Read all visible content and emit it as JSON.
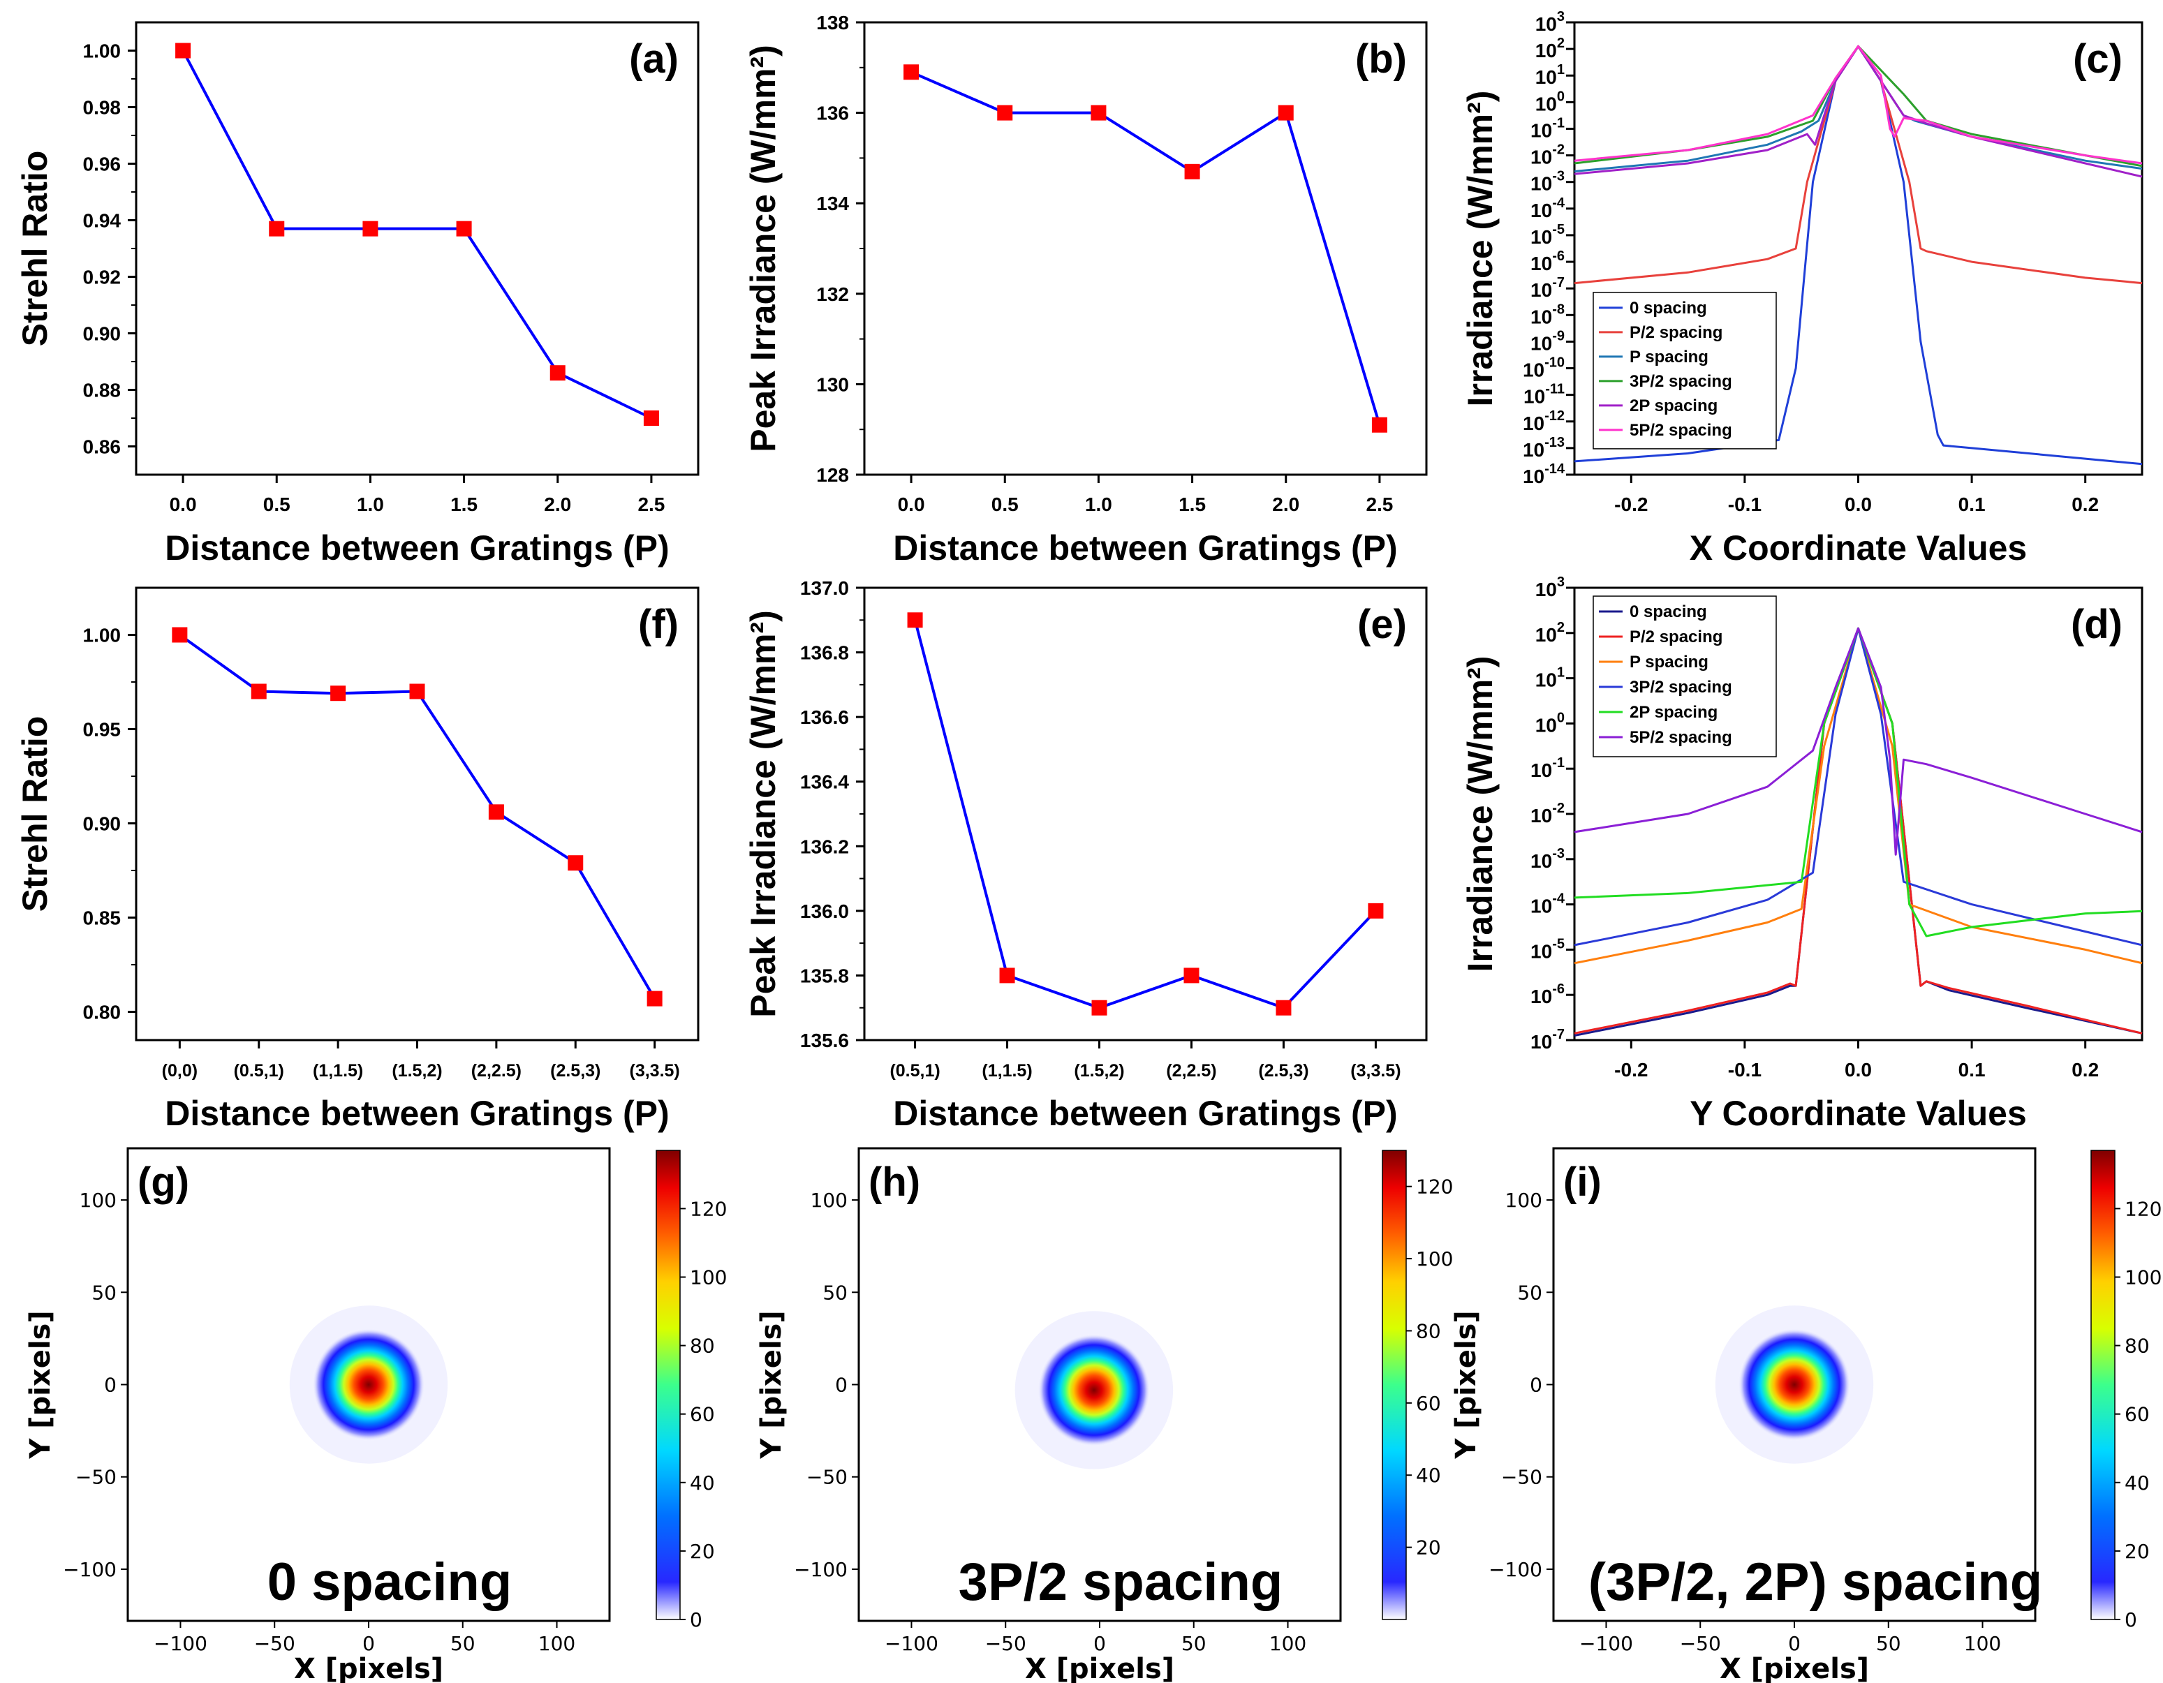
{
  "chart_data": [
    {
      "id": "a",
      "type": "line",
      "panel_label": "(a)",
      "xlabel": "Distance between Gratings (P)",
      "ylabel": "Strehl Ratio",
      "x": [
        0.0,
        0.5,
        1.0,
        1.5,
        2.0,
        2.5
      ],
      "x_tick_labels": [
        "0.0",
        "0.5",
        "1.0",
        "1.5",
        "2.0",
        "2.5"
      ],
      "values": [
        1.0,
        0.937,
        0.937,
        0.937,
        0.886,
        0.87
      ],
      "xlim": [
        -0.25,
        2.75
      ],
      "ylim": [
        0.85,
        1.01
      ],
      "y_ticks": [
        0.86,
        0.88,
        0.9,
        0.92,
        0.94,
        0.96,
        0.98,
        1.0
      ],
      "y_tick_labels": [
        "0.86",
        "0.88",
        "0.90",
        "0.92",
        "0.94",
        "0.96",
        "0.98",
        "1.00"
      ],
      "line_color": "#0000ff",
      "marker_color": "#ff0000"
    },
    {
      "id": "b",
      "type": "line",
      "panel_label": "(b)",
      "xlabel": "Distance between Gratings (P)",
      "ylabel": "Peak Irradiance (W/mm²)",
      "x": [
        0.0,
        0.5,
        1.0,
        1.5,
        2.0,
        2.5
      ],
      "x_tick_labels": [
        "0.0",
        "0.5",
        "1.0",
        "1.5",
        "2.0",
        "2.5"
      ],
      "values": [
        136.9,
        136.0,
        136.0,
        134.7,
        136.0,
        129.1
      ],
      "xlim": [
        -0.25,
        2.75
      ],
      "ylim": [
        128,
        138
      ],
      "y_ticks": [
        128,
        130,
        132,
        134,
        136,
        138
      ],
      "y_tick_labels": [
        "128",
        "130",
        "132",
        "134",
        "136",
        "138"
      ],
      "line_color": "#0000ff",
      "marker_color": "#ff0000"
    },
    {
      "id": "c",
      "type": "line",
      "scale": "log",
      "panel_label": "(c)",
      "xlabel": "X Coordinate Values",
      "ylabel": "Irradiance (W/mm²)",
      "xlim": [
        -0.25,
        0.25
      ],
      "x_ticks": [
        -0.2,
        -0.1,
        0.0,
        0.1,
        0.2
      ],
      "x_tick_labels": [
        "-0.2",
        "-0.1",
        "0.0",
        "0.1",
        "0.2"
      ],
      "ylim_exp": [
        -14,
        3
      ],
      "legend": [
        "0 spacing",
        "P/2 spacing",
        "P spacing",
        "3P/2 spacing",
        "2P spacing",
        "5P/2 spacing"
      ],
      "series": [
        {
          "name": "0 spacing",
          "color": "#1f3fd8",
          "x": [
            -0.25,
            -0.15,
            -0.07,
            -0.055,
            -0.04,
            -0.02,
            0.0,
            0.02,
            0.04,
            0.055,
            0.07,
            0.075,
            0.1,
            0.2,
            0.25
          ],
          "log10y": [
            -13.5,
            -13.2,
            -12.7,
            -10.0,
            -3.0,
            0.8,
            2.1,
            0.8,
            -3.0,
            -9.0,
            -12.5,
            -12.9,
            -13.0,
            -13.4,
            -13.6
          ]
        },
        {
          "name": "P/2 spacing",
          "color": "#e8413c",
          "x": [
            -0.25,
            -0.15,
            -0.08,
            -0.055,
            -0.045,
            -0.02,
            0.0,
            0.02,
            0.045,
            0.055,
            0.06,
            0.1,
            0.2,
            0.25
          ],
          "log10y": [
            -6.8,
            -6.4,
            -5.9,
            -5.5,
            -3.0,
            0.8,
            2.1,
            0.8,
            -3.0,
            -5.5,
            -5.6,
            -6.0,
            -6.6,
            -6.8
          ]
        },
        {
          "name": "P spacing",
          "color": "#1f77b4",
          "x": [
            -0.25,
            -0.15,
            -0.08,
            -0.05,
            -0.035,
            -0.02,
            0.0,
            0.02,
            0.04,
            0.05,
            0.1,
            0.2,
            0.25
          ],
          "log10y": [
            -2.6,
            -2.2,
            -1.6,
            -1.1,
            -0.7,
            0.8,
            2.1,
            0.8,
            -0.5,
            -0.7,
            -1.3,
            -2.2,
            -2.5
          ]
        },
        {
          "name": "3P/2 spacing",
          "color": "#2ca02c",
          "x": [
            -0.25,
            -0.15,
            -0.08,
            -0.04,
            -0.02,
            0.0,
            0.02,
            0.04,
            0.06,
            0.1,
            0.2,
            0.25
          ],
          "log10y": [
            -2.3,
            -1.8,
            -1.3,
            -0.7,
            0.9,
            2.1,
            1.2,
            0.3,
            -0.7,
            -1.2,
            -2.0,
            -2.4
          ]
        },
        {
          "name": "2P spacing",
          "color": "#a020c8",
          "x": [
            -0.25,
            -0.15,
            -0.08,
            -0.045,
            -0.038,
            -0.03,
            -0.02,
            0.0,
            0.02,
            0.04,
            0.06,
            0.1,
            0.2,
            0.25
          ],
          "log10y": [
            -2.7,
            -2.3,
            -1.8,
            -1.2,
            -1.6,
            -0.5,
            0.8,
            2.1,
            0.8,
            -0.5,
            -0.8,
            -1.3,
            -2.3,
            -2.8
          ]
        },
        {
          "name": "5P/2 spacing",
          "color": "#ff33cc",
          "x": [
            -0.25,
            -0.15,
            -0.08,
            -0.04,
            -0.02,
            0.0,
            0.02,
            0.028,
            0.032,
            0.04,
            0.06,
            0.1,
            0.2,
            0.25
          ],
          "log10y": [
            -2.2,
            -1.8,
            -1.2,
            -0.5,
            0.9,
            2.1,
            1.0,
            -1.0,
            -1.3,
            -0.6,
            -0.7,
            -1.3,
            -2.0,
            -2.3
          ]
        }
      ]
    },
    {
      "id": "d",
      "type": "line",
      "scale": "log",
      "panel_label": "(d)",
      "xlabel": "Y Coordinate Values",
      "ylabel": "Irradiance (W/mm²)",
      "xlim": [
        -0.25,
        0.25
      ],
      "x_ticks": [
        -0.2,
        -0.1,
        0.0,
        0.1,
        0.2
      ],
      "x_tick_labels": [
        "-0.2",
        "-0.1",
        "0.0",
        "0.1",
        "0.2"
      ],
      "ylim_exp": [
        -7,
        3
      ],
      "legend": [
        "0 spacing",
        "P/2 spacing",
        "P spacing",
        "3P/2 spacing",
        "2P spacing",
        "5P/2 spacing"
      ],
      "series": [
        {
          "name": "0 spacing",
          "color": "#1a1a8c",
          "x": [
            -0.25,
            -0.15,
            -0.08,
            -0.06,
            -0.055,
            -0.03,
            0.0,
            0.03,
            0.055,
            0.06,
            0.08,
            0.15,
            0.25
          ],
          "log10y": [
            -6.9,
            -6.4,
            -6.0,
            -5.8,
            -5.8,
            0.0,
            2.1,
            0.0,
            -5.8,
            -5.7,
            -5.9,
            -6.3,
            -6.85
          ]
        },
        {
          "name": "P/2 spacing",
          "color": "#ee2222",
          "x": [
            -0.25,
            -0.15,
            -0.08,
            -0.06,
            -0.055,
            -0.03,
            0.0,
            0.03,
            0.055,
            0.06,
            0.08,
            0.15,
            0.25
          ],
          "log10y": [
            -6.85,
            -6.35,
            -5.95,
            -5.75,
            -5.8,
            0.0,
            2.1,
            0.0,
            -5.8,
            -5.7,
            -5.85,
            -6.25,
            -6.85
          ]
        },
        {
          "name": "P spacing",
          "color": "#ff7f0e",
          "x": [
            -0.25,
            -0.15,
            -0.08,
            -0.05,
            -0.03,
            0.0,
            0.03,
            0.045,
            0.1,
            0.2,
            0.25
          ],
          "log10y": [
            -5.3,
            -4.8,
            -4.4,
            -4.1,
            -0.5,
            2.1,
            -0.5,
            -4.0,
            -4.5,
            -5.0,
            -5.3
          ]
        },
        {
          "name": "3P/2 spacing",
          "color": "#2a3ad8",
          "x": [
            -0.25,
            -0.15,
            -0.08,
            -0.04,
            -0.02,
            0.0,
            0.02,
            0.04,
            0.1,
            0.2,
            0.25
          ],
          "log10y": [
            -4.9,
            -4.4,
            -3.9,
            -3.3,
            0.2,
            2.1,
            0.2,
            -3.5,
            -4.0,
            -4.6,
            -4.9
          ]
        },
        {
          "name": "2P spacing",
          "color": "#22dd22",
          "x": [
            -0.25,
            -0.15,
            -0.05,
            -0.03,
            0.0,
            0.03,
            0.045,
            0.06,
            0.1,
            0.2,
            0.25
          ],
          "log10y": [
            -3.85,
            -3.75,
            -3.5,
            0.0,
            2.1,
            0.0,
            -4.0,
            -4.7,
            -4.5,
            -4.2,
            -4.15
          ]
        },
        {
          "name": "5P/2 spacing",
          "color": "#8b1fd6",
          "x": [
            -0.25,
            -0.15,
            -0.08,
            -0.04,
            -0.02,
            0.0,
            0.02,
            0.028,
            0.033,
            0.04,
            0.06,
            0.1,
            0.2,
            0.25
          ],
          "log10y": [
            -2.4,
            -2.0,
            -1.4,
            -0.6,
            0.8,
            2.1,
            0.8,
            -0.8,
            -2.9,
            -0.8,
            -0.9,
            -1.2,
            -2.0,
            -2.4
          ]
        }
      ]
    },
    {
      "id": "e",
      "type": "line",
      "panel_label": "(e)",
      "xlabel": "Distance between Gratings (P)",
      "ylabel": "Peak Irradiance (W/mm²)",
      "categories": [
        "(0.5,1)",
        "(1,1.5)",
        "(1.5,2)",
        "(2,2.5)",
        "(2.5,3)",
        "(3,3.5)"
      ],
      "values": [
        136.9,
        135.8,
        135.7,
        135.8,
        135.7,
        136.0
      ],
      "ylim": [
        135.6,
        137.0
      ],
      "y_ticks": [
        135.6,
        135.8,
        136.0,
        136.2,
        136.4,
        136.6,
        136.8,
        137.0
      ],
      "y_tick_labels": [
        "135.6",
        "135.8",
        "136.0",
        "136.2",
        "136.4",
        "136.6",
        "136.8",
        "137.0"
      ],
      "line_color": "#0000ff",
      "marker_color": "#ff0000"
    },
    {
      "id": "f",
      "type": "line",
      "panel_label": "(f)",
      "xlabel": "Distance between Gratings (P)",
      "ylabel": "Strehl Ratio",
      "categories": [
        "(0,0)",
        "(0.5,1)",
        "(1,1.5)",
        "(1.5,2)",
        "(2,2.5)",
        "(2.5,3)",
        "(3,3.5)"
      ],
      "values": [
        1.0,
        0.97,
        0.969,
        0.97,
        0.906,
        0.879,
        0.807
      ],
      "ylim": [
        0.785,
        1.025
      ],
      "y_ticks": [
        0.8,
        0.85,
        0.9,
        0.95,
        1.0
      ],
      "y_tick_labels": [
        "0.80",
        "0.85",
        "0.90",
        "0.95",
        "1.00"
      ],
      "line_color": "#0000ff",
      "marker_color": "#ff0000"
    },
    {
      "id": "g",
      "type": "heatmap",
      "panel_label": "(g)",
      "annotation": "0 spacing",
      "xlabel": "X [pixels]",
      "ylabel": "Y [pixels]",
      "xlim": [
        -128,
        128
      ],
      "ylim": [
        -128,
        128
      ],
      "x_ticks": [
        -100,
        -50,
        0,
        50,
        100
      ],
      "x_tick_labels": [
        "−100",
        "−50",
        "0",
        "50",
        "100"
      ],
      "y_ticks": [
        -100,
        -50,
        0,
        50,
        100
      ],
      "y_tick_labels": [
        "−100",
        "−50",
        "0",
        "50",
        "100"
      ],
      "spot_center": [
        0,
        0
      ],
      "peak": 137,
      "colorbar_max": 137,
      "colorbar_ticks": [
        0,
        20,
        40,
        60,
        80,
        100,
        120
      ],
      "colorbar_tick_labels": [
        "0",
        "20",
        "40",
        "60",
        "80",
        "100",
        "120"
      ]
    },
    {
      "id": "h",
      "type": "heatmap",
      "panel_label": "(h)",
      "annotation": "3P/2  spacing",
      "xlabel": "X [pixels]",
      "ylabel": "Y [pixels]",
      "xlim": [
        -128,
        128
      ],
      "ylim": [
        -128,
        128
      ],
      "x_ticks": [
        -100,
        -50,
        0,
        50,
        100
      ],
      "x_tick_labels": [
        "−100",
        "−50",
        "0",
        "50",
        "100"
      ],
      "y_ticks": [
        -100,
        -50,
        0,
        50,
        100
      ],
      "y_tick_labels": [
        "−100",
        "−50",
        "0",
        "50",
        "100"
      ],
      "spot_center": [
        -3,
        -3
      ],
      "peak": 130,
      "colorbar_max": 130,
      "colorbar_ticks": [
        20,
        40,
        60,
        80,
        100,
        120
      ],
      "colorbar_tick_labels": [
        "20",
        "40",
        "60",
        "80",
        "100",
        "120"
      ]
    },
    {
      "id": "i",
      "type": "heatmap",
      "panel_label": "(i)",
      "annotation": "(3P/2, 2P) spacing",
      "xlabel": "X [pixels]",
      "ylabel": "Y [pixels]",
      "xlim": [
        -128,
        128
      ],
      "ylim": [
        -128,
        128
      ],
      "x_ticks": [
        -100,
        -50,
        0,
        50,
        100
      ],
      "x_tick_labels": [
        "−100",
        "−50",
        "0",
        "50",
        "100"
      ],
      "y_ticks": [
        -100,
        -50,
        0,
        50,
        100
      ],
      "y_tick_labels": [
        "−100",
        "−50",
        "0",
        "50",
        "100"
      ],
      "spot_center": [
        0,
        0
      ],
      "peak": 137,
      "colorbar_max": 137,
      "colorbar_ticks": [
        0,
        20,
        40,
        60,
        80,
        100,
        120
      ],
      "colorbar_tick_labels": [
        "0",
        "20",
        "40",
        "60",
        "80",
        "100",
        "120"
      ]
    }
  ]
}
